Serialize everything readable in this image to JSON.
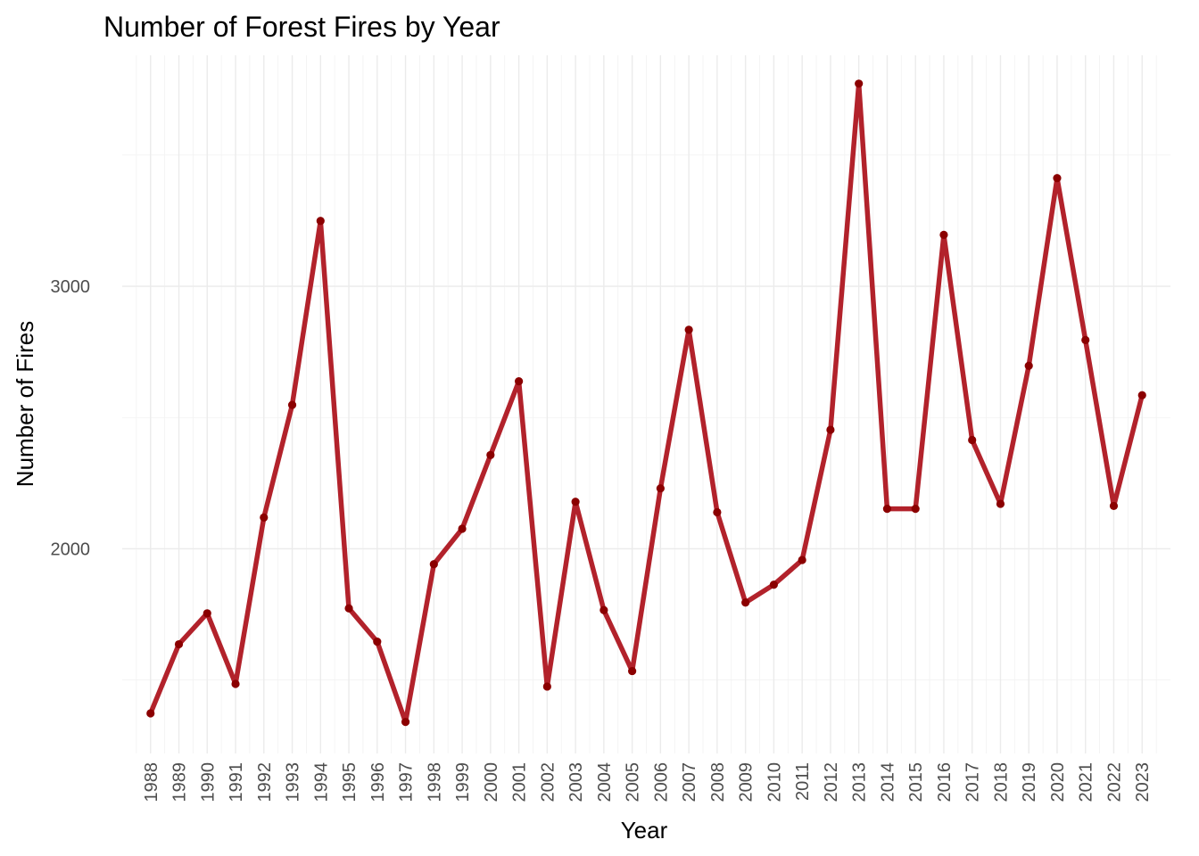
{
  "chart_data": {
    "type": "line",
    "title": "Number of Forest Fires by Year",
    "xlabel": "Year",
    "ylabel": "Number of Fires",
    "x": [
      1988,
      1989,
      1990,
      1991,
      1992,
      1993,
      1994,
      1995,
      1996,
      1997,
      1998,
      1999,
      2000,
      2001,
      2002,
      2003,
      2004,
      2005,
      2006,
      2007,
      2008,
      2009,
      2010,
      2011,
      2012,
      2013,
      2014,
      2015,
      2016,
      2017,
      2018,
      2019,
      2020,
      2021,
      2022,
      2023
    ],
    "series": [
      {
        "values": [
          1373,
          1636,
          1754,
          1485,
          2119,
          2548,
          3249,
          1773,
          1646,
          1340,
          1941,
          2076,
          2357,
          2638,
          1475,
          2179,
          1766,
          1534,
          2230,
          2834,
          2139,
          1795,
          1863,
          1957,
          2453,
          3772,
          2152,
          2152,
          3196,
          2414,
          2171,
          2697,
          3412,
          2795,
          2163,
          2585
        ]
      }
    ],
    "xlim": [
      1987.0,
      2024.0
    ],
    "ylim": [
      1220,
      3880
    ],
    "yticks": [
      2000,
      3000
    ],
    "y_minor_grid": [
      1500,
      2500,
      3500
    ],
    "grid": true,
    "x_tick_rotation": 90,
    "line_color": "#b2222b",
    "point_color": "#8b0000"
  }
}
